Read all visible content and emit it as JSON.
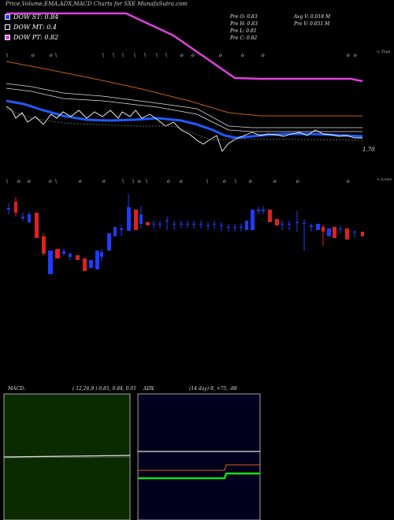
{
  "title": "Price,Volume,EMA,ADX,MACD Charts for SXE MunafaSutra.com",
  "legend": [
    {
      "label": "DOW ST: 0.84",
      "color": "#1f3bff"
    },
    {
      "label": "DOW MT: 0.4",
      "color": "#000000"
    },
    {
      "label": "DOW PT: 0.82",
      "color": "#e040e0"
    }
  ],
  "stats": {
    "prev_open": "Pre   O: 0.83",
    "prev_high": "Pre   H: 0.83",
    "prev_low": "Pre   L: 0.81",
    "prev_close": "Pre   C: 0.82",
    "avg_vol": "Avg V: 0.018 M",
    "prev_vol": "Pre   V: 0.051 M"
  },
  "top_label": "< Tops",
  "lows_label": "< Lows",
  "price_label": "1.70",
  "macd": {
    "name": "MACD:",
    "params": "( 12,26,9 ) 0.85,  0.84,  0.01",
    "bg": "#0a2a00",
    "line": "#e0e0e0"
  },
  "adx": {
    "name": "ADX",
    "params": "(14  day) 8,  +75,  -88",
    "bg": "#00001e"
  },
  "colors": {
    "up": "#1f3bff",
    "down": "#e02020",
    "ema_short": "#1f5bff",
    "ema_long": "#c06010",
    "pt": "#e040e0"
  },
  "chart_data": {
    "type": "line",
    "series": [
      {
        "values": [
          1.95,
          1.93,
          1.91,
          1.89,
          1.87,
          1.85,
          1.83,
          1.81,
          1.79,
          1.77,
          1.75,
          1.74,
          1.73,
          1.73,
          1.73,
          1.73,
          1.73
        ]
      },
      {
        "values": [
          1.7,
          1.72,
          1.73,
          1.72,
          1.7,
          1.71,
          1.72,
          1.72,
          1.71,
          1.7,
          1.69,
          1.69,
          1.7,
          1.71,
          1.71,
          1.7,
          1.7
        ]
      }
    ]
  }
}
